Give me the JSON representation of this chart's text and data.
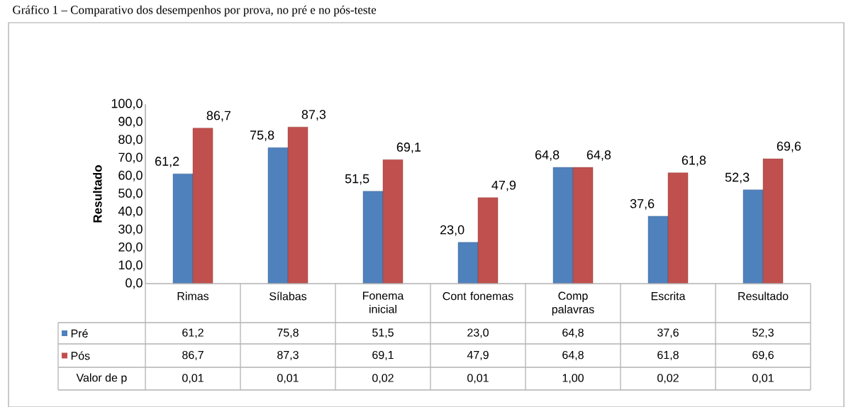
{
  "chart_data": {
    "type": "bar",
    "title": "Gráfico 1 – Comparativo dos desempenhos por prova, no pré e no pós-teste",
    "ylabel": "Resultado",
    "categories": [
      "Rimas",
      "Sílabas",
      "Fonema inicial",
      "Cont fonemas",
      "Comp palavras",
      "Escrita",
      "Resultado"
    ],
    "series": [
      {
        "name": "Pré",
        "color": "#4f81bd",
        "values": [
          61.2,
          75.8,
          51.5,
          23.0,
          64.8,
          37.6,
          52.3
        ],
        "value_labels": [
          "61,2",
          "75,8",
          "51,5",
          "23,0",
          "64,8",
          "37,6",
          "52,3"
        ]
      },
      {
        "name": "Pós",
        "color": "#c0504d",
        "values": [
          86.7,
          87.3,
          69.1,
          47.9,
          64.8,
          61.8,
          69.6
        ],
        "value_labels": [
          "86,7",
          "87,3",
          "69,1",
          "47,9",
          "64,8",
          "61,8",
          "69,6"
        ]
      }
    ],
    "annotations": [
      "Valor de p",
      "0,01",
      "0,01",
      "0,02",
      "0,01",
      "1,00",
      "0,02",
      "0,01"
    ],
    "ylim": [
      0,
      100
    ],
    "yticks": [
      {
        "value": 0,
        "label": "0,0"
      },
      {
        "value": 10,
        "label": "10,0"
      },
      {
        "value": 20,
        "label": "20,0"
      },
      {
        "value": 30,
        "label": "30,0"
      },
      {
        "value": 40,
        "label": "40,0"
      },
      {
        "value": 50,
        "label": "50,0"
      },
      {
        "value": 60,
        "label": "60,0"
      },
      {
        "value": 70,
        "label": "70,0"
      },
      {
        "value": 80,
        "label": "80,0"
      },
      {
        "value": 90,
        "label": "90,0"
      },
      {
        "value": 100,
        "label": "100,0"
      }
    ],
    "legend": "bottom",
    "grid": false
  }
}
